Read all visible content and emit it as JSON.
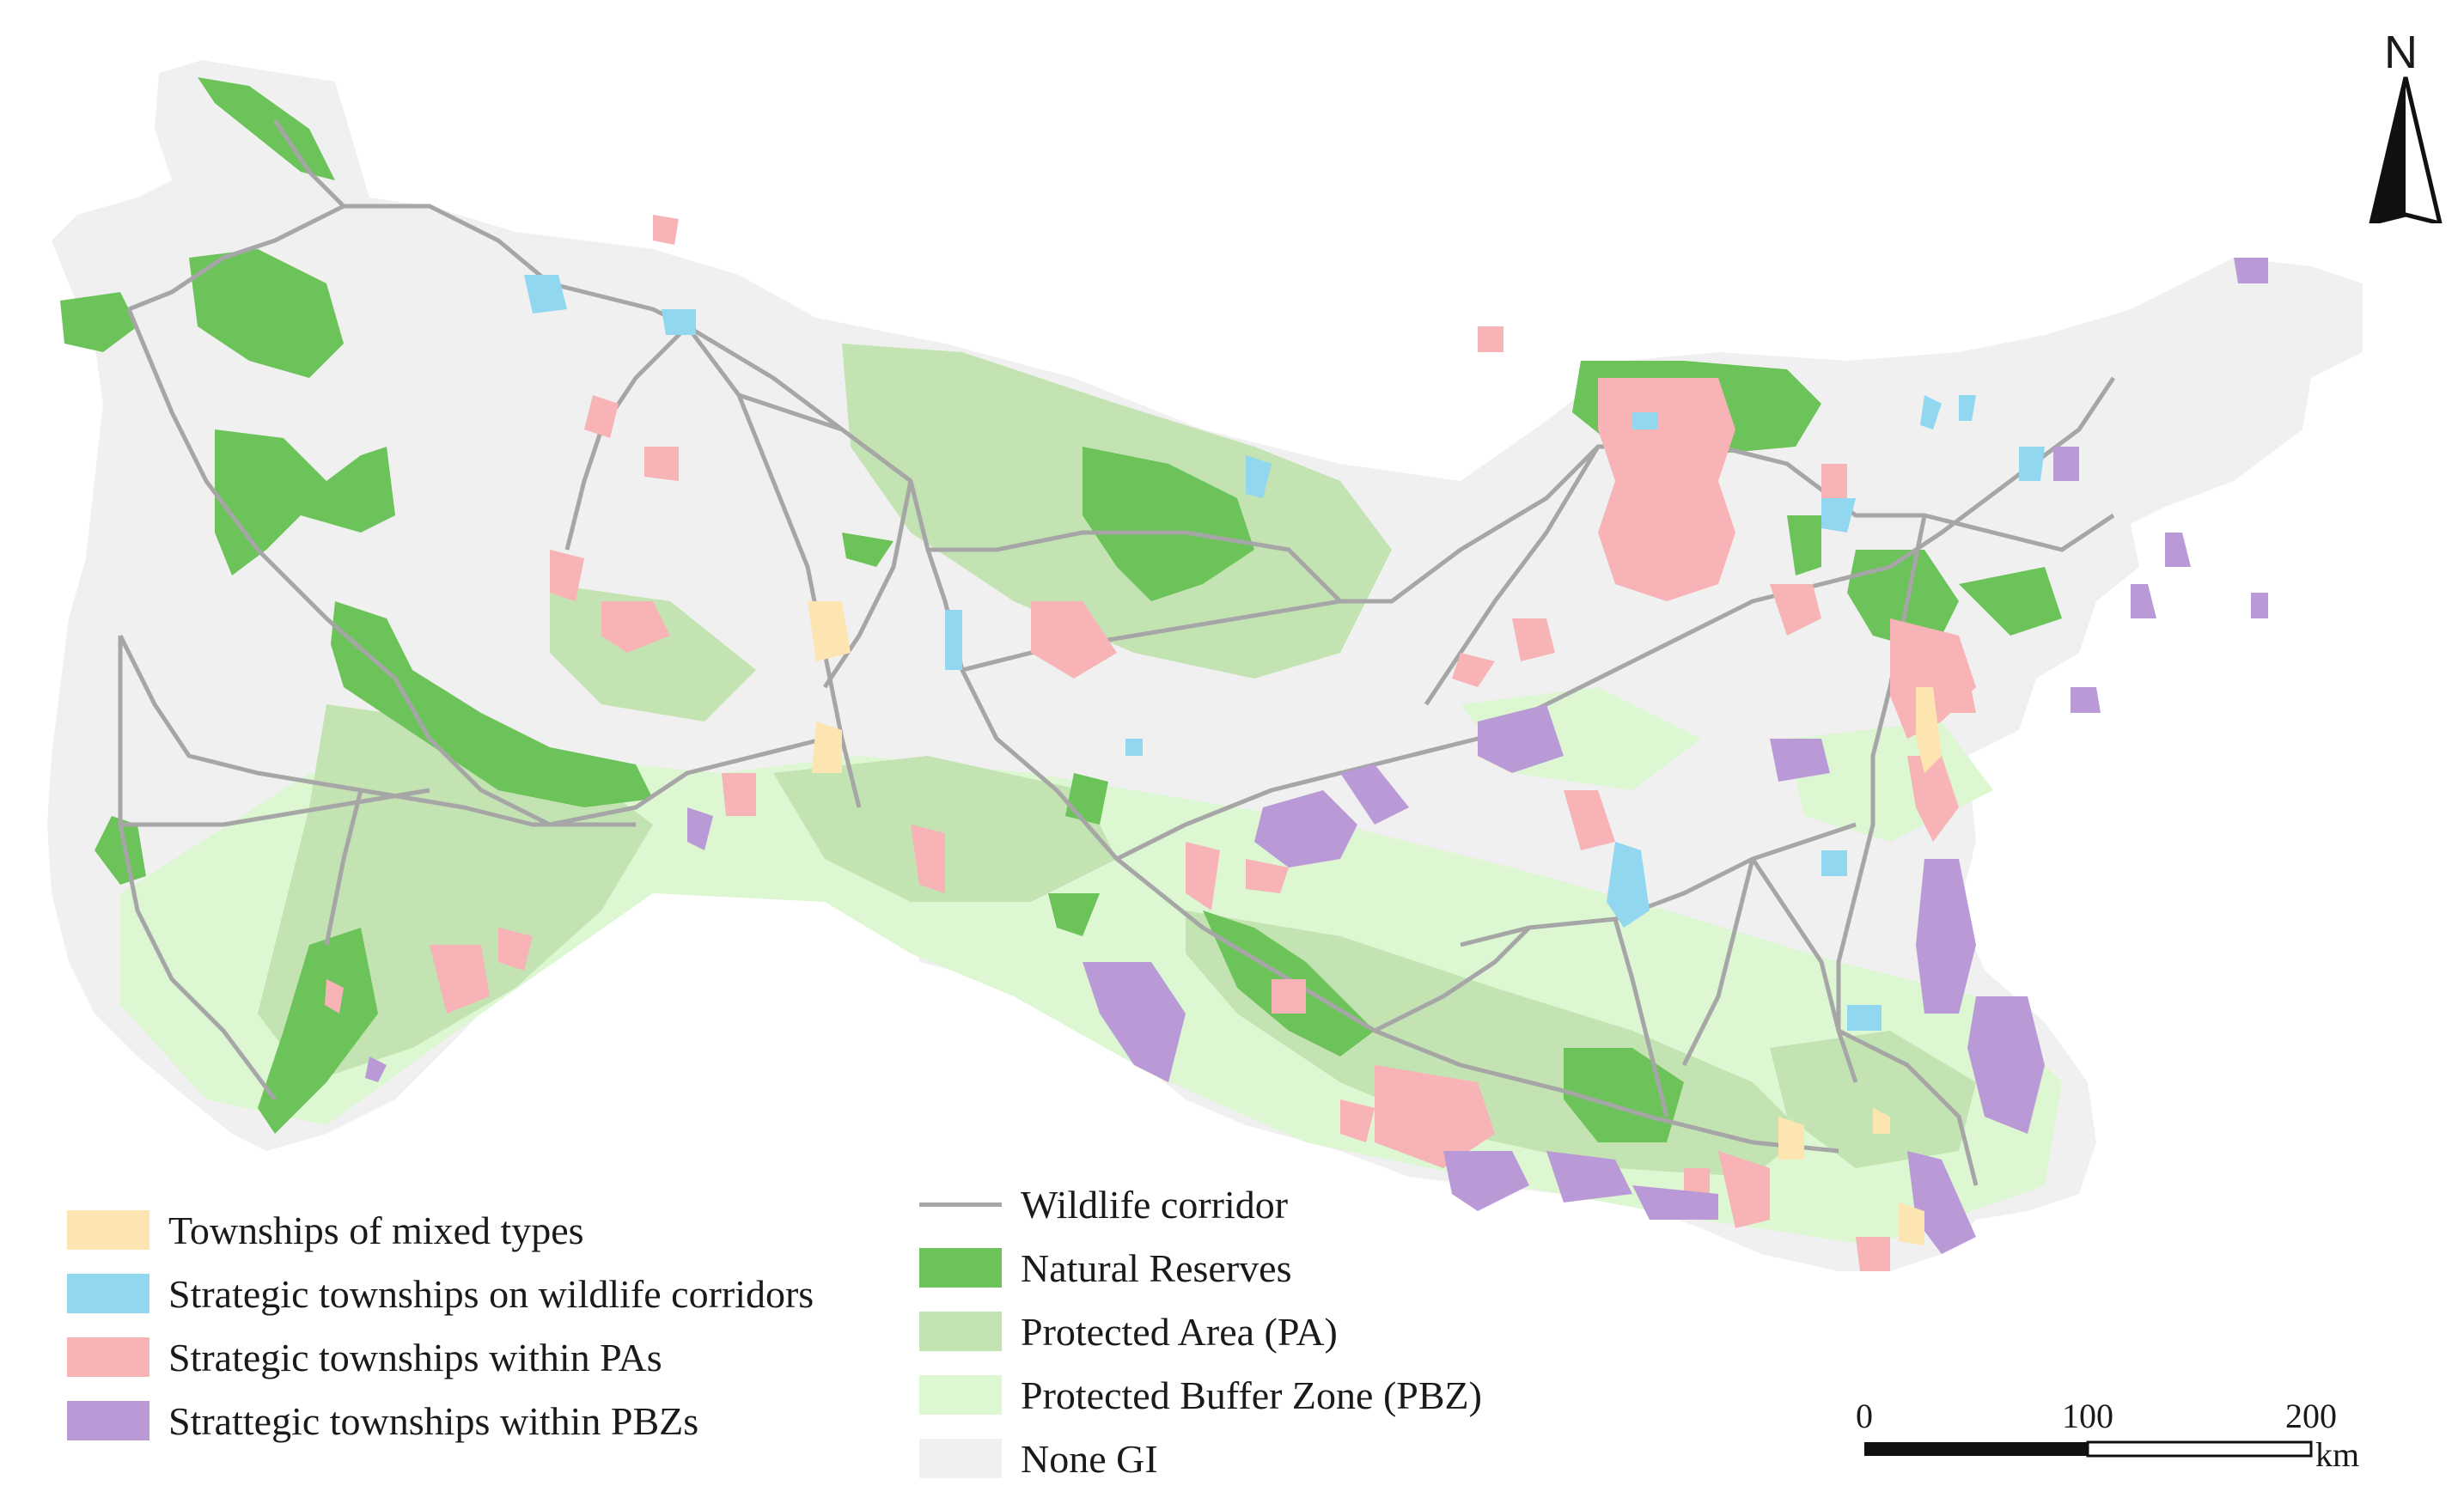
{
  "legend_left": [
    {
      "label": "Townships of mixed types",
      "color": "#fde5b2"
    },
    {
      "label": "Strategic townships on wildlife corridors",
      "color": "#90d7ef"
    },
    {
      "label": "Strategic townships within PAs",
      "color": "#f7b3b6"
    },
    {
      "label": "Strattegic townships within PBZs",
      "color": "#b99ad6"
    }
  ],
  "legend_right": [
    {
      "label": "Wildlife corridor",
      "kind": "line",
      "color": "#a6a6a6"
    },
    {
      "label": "Natural Reserves",
      "color": "#6cc35a"
    },
    {
      "label": "Protected Area (PA)",
      "color": "#c3e3b2"
    },
    {
      "label": "Protected Buffer Zone (PBZ)",
      "color": "#dcf7d2"
    },
    {
      "label": "None GI",
      "color": "#f0f0f0"
    }
  ],
  "north_arrow": {
    "label": "N",
    "icon": "north-arrow-icon"
  },
  "scale_bar": {
    "ticks": [
      "0",
      "100",
      "200"
    ],
    "unit": "km"
  }
}
